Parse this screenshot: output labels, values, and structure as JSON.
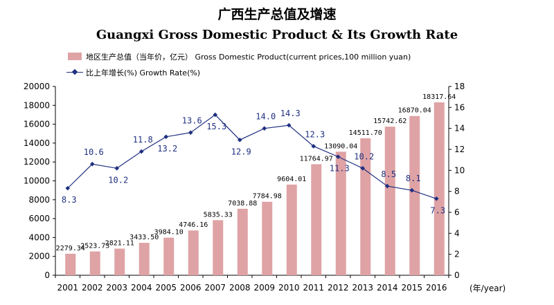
{
  "chart_data": {
    "type": "bar",
    "title": "广西生产总值及增速",
    "subtitle": "Guangxi Gross Domestic Product & Its Growth Rate",
    "categories": [
      "2001",
      "2002",
      "2003",
      "2004",
      "2005",
      "2006",
      "2007",
      "2008",
      "2009",
      "2010",
      "2011",
      "2012",
      "2013",
      "2014",
      "2015",
      "2016"
    ],
    "x_unit": "(年/year)",
    "legend": [
      {
        "label": "地区生产总值（当年价，亿元） Gross Domestic Product(current prices,100 million yuan)"
      },
      {
        "label": "比上年增长(%) Growth Rate(%)"
      }
    ],
    "legend_placement": "top-left",
    "grid": false,
    "y_left": {
      "min": 0,
      "max": 20000,
      "ticks": [
        0,
        2000,
        4000,
        6000,
        8000,
        10000,
        12000,
        14000,
        16000,
        18000,
        20000
      ]
    },
    "y_right": {
      "min": 0,
      "max": 18,
      "ticks": [
        0,
        2,
        4,
        6,
        8,
        10,
        12,
        14,
        16,
        18
      ]
    },
    "series": [
      {
        "name": "地区生产总值（当年价，亿元） Gross Domestic Product(current prices,100 million yuan)",
        "type": "bar",
        "axis": "left",
        "color": "#dfa3a5",
        "values": [
          2279.34,
          2523.73,
          2821.11,
          3433.5,
          3984.1,
          4746.16,
          5835.33,
          7038.88,
          7784.98,
          9604.01,
          11764.97,
          13090.04,
          14511.7,
          15742.62,
          16870.04,
          18317.64
        ],
        "labels": [
          "2279.34",
          "2523.73",
          "2821.11",
          "3433.50",
          "3984.10",
          "4746.16",
          "5835.33",
          "7038.88",
          "7784.98",
          "9604.01",
          "11764.97",
          "13090.04",
          "14511.70",
          "15742.62",
          "16870.04",
          "18317.64"
        ]
      },
      {
        "name": "比上年增长(%) Growth Rate(%)",
        "type": "line",
        "axis": "right",
        "color": "#1f2f80",
        "values": [
          8.3,
          10.6,
          10.2,
          11.8,
          13.2,
          13.6,
          15.3,
          12.9,
          14.0,
          14.3,
          12.3,
          11.3,
          10.2,
          8.5,
          8.1,
          7.3
        ],
        "labels": [
          "8.3",
          "10.6",
          "10.2",
          "11.8",
          "13.2",
          "13.6",
          "15.3",
          "12.9",
          "14.0",
          "14.3",
          "12.3",
          "11.3",
          "10.2",
          "8.5",
          "8.1",
          "7.3"
        ]
      }
    ]
  }
}
